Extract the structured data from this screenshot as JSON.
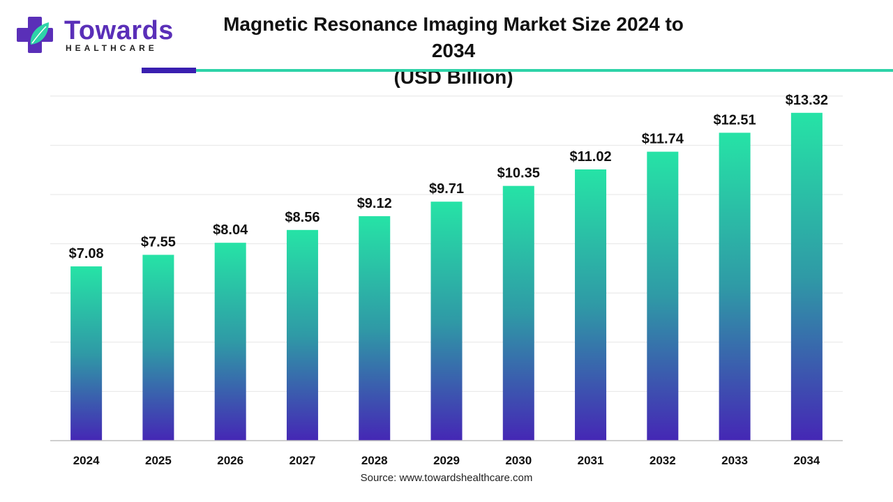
{
  "brand": {
    "name": "Towards",
    "tagline": "HEALTHCARE",
    "colors": {
      "primary": "#5a2fb8",
      "accent_teal": "#2ed3a8",
      "accent_dark": "#3a1fb0"
    }
  },
  "source_text": "Source: www.towardshealthcare.com",
  "chart_data": {
    "type": "bar",
    "title_line1": "Magnetic Resonance Imaging Market Size 2024 to 2034",
    "title_line2": "(USD Billion)",
    "categories": [
      "2024",
      "2025",
      "2026",
      "2027",
      "2028",
      "2029",
      "2030",
      "2031",
      "2032",
      "2033",
      "2034"
    ],
    "values": [
      7.08,
      7.55,
      8.04,
      8.56,
      9.12,
      9.71,
      10.35,
      11.02,
      11.74,
      12.51,
      13.32
    ],
    "value_labels": [
      "$7.08",
      "$7.55",
      "$8.04",
      "$8.56",
      "$9.12",
      "$9.71",
      "$10.35",
      "$11.02",
      "$11.74",
      "$12.51",
      "$13.32"
    ],
    "ylim": [
      0,
      14
    ],
    "grid": true,
    "bar_gradient": {
      "top": "#26e3a6",
      "middle": "#2f9aa6",
      "bottom": "#4527b5"
    }
  }
}
